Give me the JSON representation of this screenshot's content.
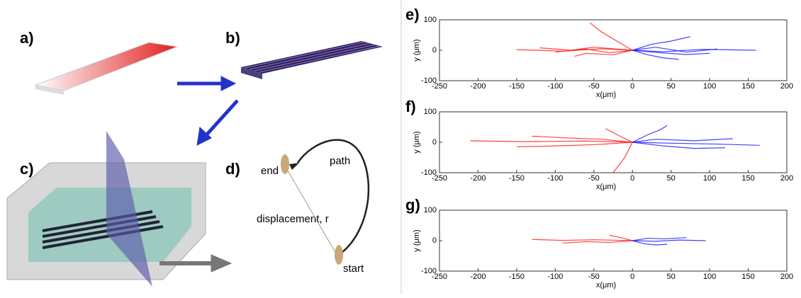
{
  "diagram": {
    "labels": [
      "a)",
      "b)",
      "c)",
      "d)"
    ],
    "end": "end",
    "path": "path",
    "displacement": "displacement, r",
    "start": "start"
  },
  "chart_data": [
    {
      "type": "line",
      "label": "e)",
      "x_label": "x(μm)",
      "y_label": "y (μm)",
      "xlim": [
        -250,
        200
      ],
      "ylim": [
        -100,
        100
      ],
      "xticks": [
        -250,
        -200,
        -150,
        -100,
        -50,
        0,
        50,
        100,
        150,
        200
      ],
      "yticks": [
        -100,
        0,
        100
      ],
      "series": [
        {
          "color": "#ff2020",
          "x": [
            0,
            -40,
            -90,
            -150
          ],
          "values": [
            0,
            5,
            -3,
            2
          ]
        },
        {
          "color": "#ff2020",
          "x": [
            0,
            -30,
            -60,
            -100
          ],
          "values": [
            0,
            -8,
            4,
            -6
          ]
        },
        {
          "color": "#ff2020",
          "x": [
            0,
            -20,
            -40,
            -55
          ],
          "values": [
            0,
            30,
            60,
            90
          ]
        },
        {
          "color": "#ff2020",
          "x": [
            0,
            -50,
            -80,
            -120
          ],
          "values": [
            0,
            10,
            0,
            8
          ]
        },
        {
          "color": "#ff2020",
          "x": [
            0,
            -25,
            -60,
            -75
          ],
          "values": [
            0,
            -15,
            -10,
            -20
          ]
        },
        {
          "color": "#2020ff",
          "x": [
            0,
            40,
            90,
            160
          ],
          "values": [
            0,
            -5,
            3,
            0
          ]
        },
        {
          "color": "#2020ff",
          "x": [
            0,
            30,
            70,
            110
          ],
          "values": [
            0,
            10,
            -6,
            4
          ]
        },
        {
          "color": "#2020ff",
          "x": [
            0,
            20,
            40,
            60
          ],
          "values": [
            0,
            -15,
            -25,
            -30
          ]
        },
        {
          "color": "#2020ff",
          "x": [
            0,
            25,
            50,
            75
          ],
          "values": [
            0,
            20,
            30,
            45
          ]
        },
        {
          "color": "#2020ff",
          "x": [
            0,
            35,
            70,
            100
          ],
          "values": [
            0,
            -8,
            -14,
            -10
          ]
        }
      ]
    },
    {
      "type": "line",
      "label": "f)",
      "x_label": "x(μm)",
      "y_label": "y (μm)",
      "xlim": [
        -250,
        200
      ],
      "ylim": [
        -100,
        100
      ],
      "xticks": [
        -250,
        -200,
        -150,
        -100,
        -50,
        0,
        50,
        100,
        150,
        200
      ],
      "yticks": [
        -100,
        0,
        100
      ],
      "series": [
        {
          "color": "#ff2020",
          "x": [
            0,
            -60,
            -140,
            -210
          ],
          "values": [
            0,
            4,
            2,
            5
          ]
        },
        {
          "color": "#ff2020",
          "x": [
            0,
            -40,
            -90,
            -130
          ],
          "values": [
            0,
            10,
            15,
            20
          ]
        },
        {
          "color": "#ff2020",
          "x": [
            0,
            -10,
            -25
          ],
          "values": [
            0,
            -50,
            -100
          ]
        },
        {
          "color": "#ff2020",
          "x": [
            0,
            -50,
            -100,
            -150
          ],
          "values": [
            0,
            -8,
            -12,
            -15
          ]
        },
        {
          "color": "#ff2020",
          "x": [
            0,
            -20,
            -35
          ],
          "values": [
            0,
            25,
            45
          ]
        },
        {
          "color": "#2020ff",
          "x": [
            0,
            50,
            110,
            165
          ],
          "values": [
            0,
            -3,
            -6,
            -10
          ]
        },
        {
          "color": "#2020ff",
          "x": [
            0,
            30,
            80,
            130
          ],
          "values": [
            0,
            10,
            5,
            12
          ]
        },
        {
          "color": "#2020ff",
          "x": [
            0,
            20,
            35,
            45
          ],
          "values": [
            0,
            25,
            40,
            55
          ]
        },
        {
          "color": "#2020ff",
          "x": [
            0,
            40,
            80,
            120
          ],
          "values": [
            0,
            -12,
            -20,
            -18
          ]
        }
      ]
    },
    {
      "type": "line",
      "label": "g)",
      "x_label": "x(μm)",
      "y_label": "y (μm)",
      "xlim": [
        -250,
        200
      ],
      "ylim": [
        -100,
        100
      ],
      "xticks": [
        -250,
        -200,
        -150,
        -100,
        -50,
        0,
        50,
        100,
        150,
        200
      ],
      "yticks": [
        -100,
        0,
        100
      ],
      "series": [
        {
          "color": "#ff2020",
          "x": [
            0,
            -50,
            -90,
            -130
          ],
          "values": [
            0,
            3,
            1,
            4
          ]
        },
        {
          "color": "#ff2020",
          "x": [
            0,
            -30,
            -60,
            -90
          ],
          "values": [
            0,
            -6,
            -3,
            -8
          ]
        },
        {
          "color": "#ff2020",
          "x": [
            0,
            -15,
            -30
          ],
          "values": [
            0,
            10,
            18
          ]
        },
        {
          "color": "#2020ff",
          "x": [
            0,
            30,
            60,
            95
          ],
          "values": [
            0,
            -2,
            2,
            0
          ]
        },
        {
          "color": "#2020ff",
          "x": [
            0,
            20,
            40,
            70
          ],
          "values": [
            0,
            8,
            6,
            10
          ]
        },
        {
          "color": "#2020ff",
          "x": [
            0,
            15,
            30,
            45
          ],
          "values": [
            0,
            -10,
            -14,
            -12
          ]
        }
      ]
    }
  ]
}
